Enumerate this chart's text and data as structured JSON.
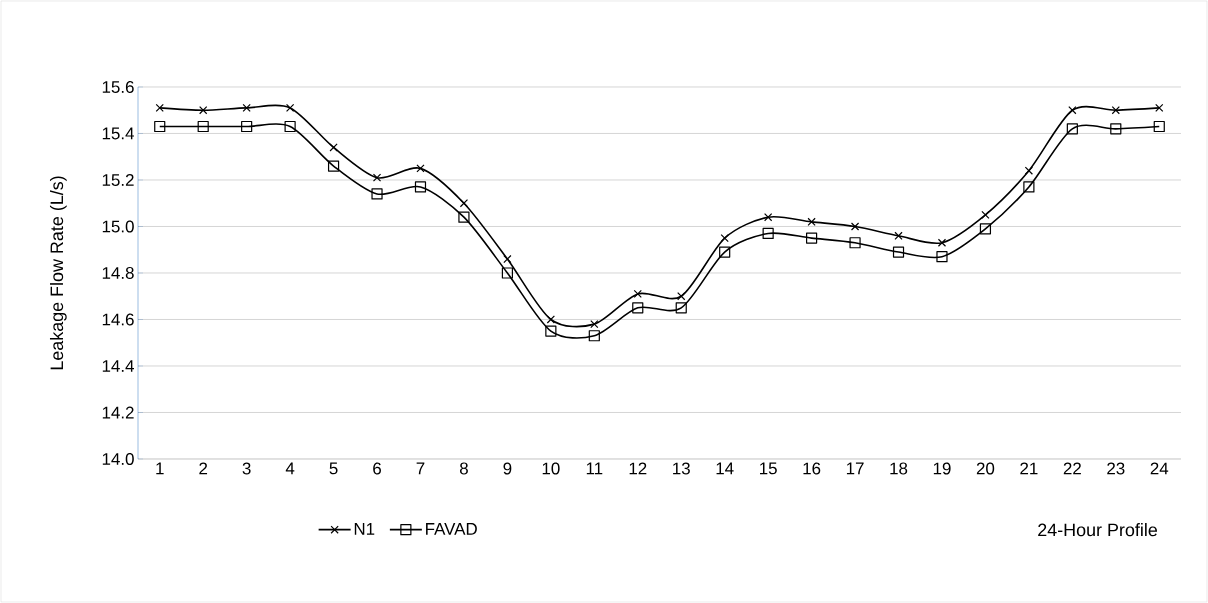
{
  "chart_data": {
    "type": "line",
    "ylabel": "Leakage Flow Rate (L/s)",
    "xlabel": "24-Hour Profile",
    "categories": [
      "1",
      "2",
      "3",
      "4",
      "5",
      "6",
      "7",
      "8",
      "9",
      "10",
      "11",
      "12",
      "13",
      "14",
      "15",
      "16",
      "17",
      "18",
      "19",
      "20",
      "21",
      "22",
      "23",
      "24"
    ],
    "series": [
      {
        "name": "N1",
        "color": "#000000",
        "marker": "cross",
        "values": [
          15.51,
          15.5,
          15.51,
          15.51,
          15.34,
          15.21,
          15.25,
          15.1,
          14.86,
          14.6,
          14.58,
          14.71,
          14.7,
          14.95,
          15.04,
          15.02,
          15.0,
          14.96,
          14.93,
          15.05,
          15.24,
          15.5,
          15.5,
          15.51
        ]
      },
      {
        "name": "FAVAD",
        "color": "#000000",
        "marker": "square",
        "values": [
          15.43,
          15.43,
          15.43,
          15.43,
          15.26,
          15.14,
          15.17,
          15.04,
          14.8,
          14.55,
          14.53,
          14.65,
          14.65,
          14.89,
          14.97,
          14.95,
          14.93,
          14.89,
          14.87,
          14.99,
          15.17,
          15.42,
          15.42,
          15.43
        ]
      }
    ],
    "ylim": [
      14.0,
      15.6
    ],
    "yticks": [
      {
        "value": 14.0,
        "label": "14.0"
      },
      {
        "value": 14.2,
        "label": "14.2"
      },
      {
        "value": 14.4,
        "label": "14.4"
      },
      {
        "value": 14.6,
        "label": "14.6"
      },
      {
        "value": 14.8,
        "label": "14.8"
      },
      {
        "value": 15.0,
        "label": "15.0"
      },
      {
        "value": 15.2,
        "label": "15.2"
      },
      {
        "value": 15.4,
        "label": "15.4"
      },
      {
        "value": 15.6,
        "label": "15.6"
      }
    ],
    "grid": "y",
    "legend": "bottom",
    "line_style": "solid"
  }
}
